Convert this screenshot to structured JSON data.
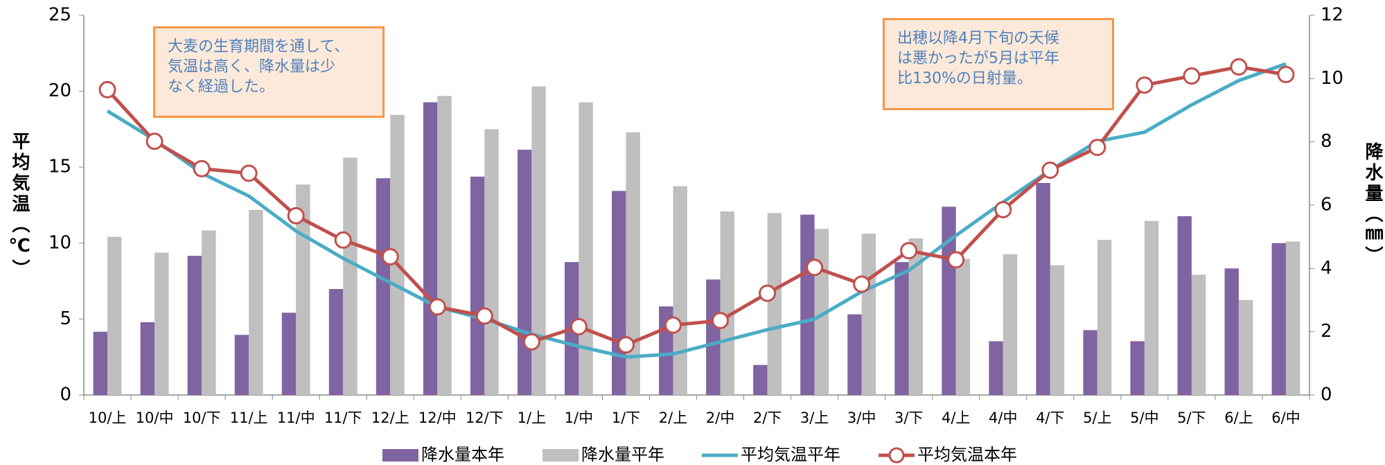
{
  "chart_data": {
    "type": "bar-line",
    "ylabel": "平均気温（℃）",
    "y2label": "降水量（㎜）",
    "categories": [
      "10/上",
      "10/中",
      "10/下",
      "11/上",
      "11/中",
      "11/下",
      "12/上",
      "12/中",
      "12/下",
      "1/上",
      "1/中",
      "1/下",
      "2/上",
      "2/中",
      "2/下",
      "3/上",
      "3/中",
      "3/下",
      "4/上",
      "4/中",
      "4/下",
      "5/上",
      "5/中",
      "5/下",
      "6/上",
      "6/中"
    ],
    "ylim": [
      0,
      25
    ],
    "yticks": [
      0,
      5,
      10,
      15,
      20,
      25
    ],
    "y2lim": [
      0,
      12
    ],
    "y2ticks": [
      0,
      2,
      4,
      6,
      8,
      10,
      12
    ],
    "series": [
      {
        "name": "降水量本年",
        "kind": "bar",
        "axis": "y2",
        "color": "#8064a2",
        "values": [
          2.0,
          2.3,
          4.4,
          1.9,
          2.6,
          3.35,
          6.85,
          9.25,
          6.9,
          7.75,
          4.2,
          6.45,
          2.8,
          3.65,
          0.95,
          5.7,
          2.55,
          4.2,
          5.95,
          1.7,
          6.7,
          2.05,
          1.7,
          5.65,
          4.0,
          4.8
        ]
      },
      {
        "name": "降水量平年",
        "kind": "bar",
        "axis": "y2",
        "color": "#bfbfbf",
        "values": [
          5.0,
          4.5,
          5.2,
          5.85,
          6.65,
          7.5,
          8.85,
          9.45,
          8.4,
          9.75,
          9.25,
          8.3,
          6.6,
          5.8,
          5.75,
          5.25,
          5.1,
          4.95,
          4.3,
          4.45,
          4.1,
          4.9,
          5.5,
          3.8,
          3.0,
          4.85
        ]
      },
      {
        "name": "平均気温平年",
        "kind": "line",
        "color": "#4bacc6",
        "values": [
          18.7,
          16.8,
          14.6,
          13.1,
          10.8,
          9.0,
          7.4,
          5.8,
          5.0,
          4.0,
          3.2,
          2.5,
          2.7,
          3.5,
          4.3,
          5.0,
          6.8,
          8.2,
          10.5,
          12.7,
          14.8,
          16.7,
          17.3,
          19.1,
          20.7,
          21.8
        ]
      },
      {
        "name": "平均気温本年",
        "kind": "line-marker",
        "color": "#c0504d",
        "values": [
          20.1,
          16.7,
          14.9,
          14.6,
          11.8,
          10.2,
          9.1,
          5.8,
          5.2,
          3.5,
          4.5,
          3.3,
          4.6,
          4.9,
          6.7,
          8.4,
          7.3,
          9.5,
          8.9,
          12.2,
          14.8,
          16.3,
          20.4,
          21.0,
          21.6,
          21.1
        ]
      }
    ],
    "annotations": [
      {
        "lines": [
          "大麦の生育期間を通して、",
          "気温は高く、降水量は少",
          "なく経過した。"
        ]
      },
      {
        "lines": [
          "出穂以降4月下旬の天候",
          "は悪かったが5月は平年",
          "比130%の日射量。"
        ]
      }
    ]
  }
}
